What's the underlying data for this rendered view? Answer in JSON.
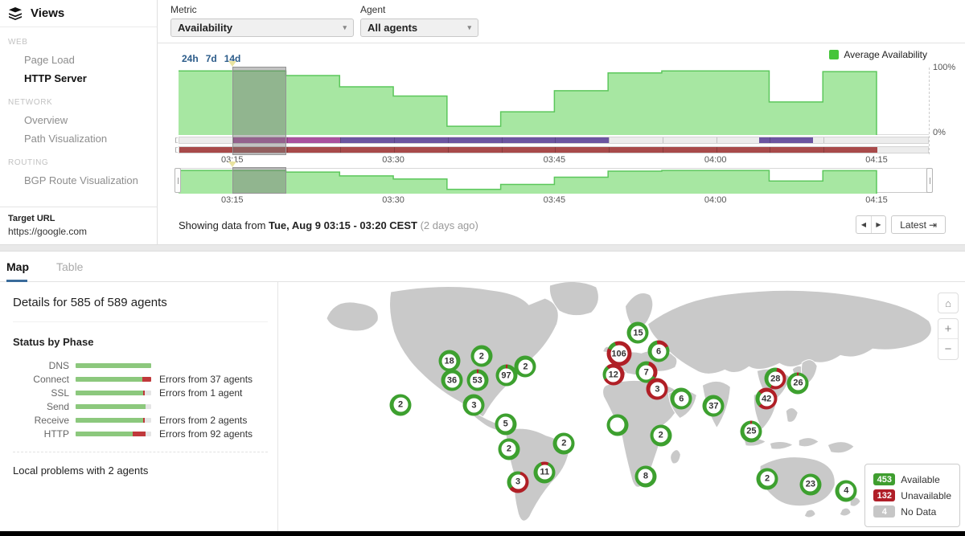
{
  "sidebar": {
    "title": "Views",
    "sections": [
      {
        "label": "WEB",
        "items": [
          {
            "label": "Page Load",
            "active": false
          },
          {
            "label": "HTTP Server",
            "active": true
          }
        ]
      },
      {
        "label": "NETWORK",
        "items": [
          {
            "label": "Overview",
            "active": false
          },
          {
            "label": "Path Visualization",
            "active": false
          }
        ]
      },
      {
        "label": "ROUTING",
        "items": [
          {
            "label": "BGP Route Visualization",
            "active": false
          }
        ]
      }
    ],
    "target_url_label": "Target URL",
    "target_url": "https://google.com"
  },
  "controls": {
    "metric_label": "Metric",
    "metric_value": "Availability",
    "agent_label": "Agent",
    "agent_value": "All agents",
    "caret": "▾"
  },
  "timeline": {
    "range_links": [
      "24h",
      "7d",
      "14d"
    ],
    "legend_label": "Average Availability",
    "y_top": "100%",
    "y_bottom": "0%"
  },
  "chart_data": {
    "type": "area",
    "title": "Average Availability (%)",
    "step_minutes": 5,
    "x": [
      "03:10",
      "03:15",
      "03:20",
      "03:25",
      "03:30",
      "03:35",
      "03:40",
      "03:45",
      "03:50",
      "03:55",
      "04:00",
      "04:05",
      "04:10"
    ],
    "values": [
      96,
      96,
      89,
      72,
      58,
      12,
      34,
      66,
      93,
      96,
      96,
      49,
      95
    ],
    "ylim": [
      0,
      100
    ],
    "x_ticks": [
      "03:15",
      "03:30",
      "03:45",
      "04:00",
      "04:15"
    ],
    "x_tick_minutes": [
      5,
      20,
      35,
      50,
      65
    ],
    "total_minutes": 65,
    "selection": {
      "from": "03:15",
      "to": "03:20",
      "from_min": 5,
      "to_min": 10
    },
    "route_bar_segments": [
      {
        "start_min": 5,
        "end_min": 15,
        "color": "magenta"
      },
      {
        "start_min": 15,
        "end_min": 40,
        "color": "purple"
      },
      {
        "start_min": 54,
        "end_min": 59,
        "color": "purple"
      }
    ],
    "error_bar_segments": [
      {
        "start_min": 0,
        "end_min": 65,
        "color": "red"
      }
    ]
  },
  "status_bar": {
    "prefix": "Showing data from ",
    "bold": "Tue, Aug 9 03:15 - 03:20 CEST",
    "suffix": " (2 days ago)",
    "prev_icon": "◀",
    "next_icon": "▶",
    "latest_label": "Latest",
    "latest_icon": "⇥"
  },
  "tabs": [
    {
      "label": "Map",
      "active": true
    },
    {
      "label": "Table",
      "active": false
    }
  ],
  "details": {
    "title": "Details for 585 of 589 agents",
    "status_by_phase_title": "Status by Phase",
    "phases": [
      {
        "label": "DNS",
        "green": 100,
        "red": 0,
        "note": ""
      },
      {
        "label": "Connect",
        "green": 88,
        "red": 12,
        "note": "Errors from 37 agents"
      },
      {
        "label": "SSL",
        "green": 89,
        "red": 2,
        "note": "Errors from 1 agent"
      },
      {
        "label": "Send",
        "green": 93,
        "red": 0,
        "note": ""
      },
      {
        "label": "Receive",
        "green": 89,
        "red": 2,
        "note": "Errors from 2 agents"
      },
      {
        "label": "HTTP",
        "green": 76,
        "red": 17,
        "note": "Errors from 92 agents"
      }
    ],
    "local_problems": "Local problems with 2 agents"
  },
  "map": {
    "markers": [
      {
        "v": "18",
        "x": 24.9,
        "y": 31.7,
        "red": 0,
        "rot": 0
      },
      {
        "v": "2",
        "x": 29.6,
        "y": 29.8,
        "red": 0,
        "rot": 0
      },
      {
        "v": "97",
        "x": 33.2,
        "y": 37.5,
        "red": 3,
        "rot": -5
      },
      {
        "v": "2",
        "x": 36.0,
        "y": 34.0,
        "red": 0,
        "rot": 0
      },
      {
        "v": "36",
        "x": 25.3,
        "y": 39.5,
        "red": 0,
        "rot": 0
      },
      {
        "v": "53",
        "x": 29.0,
        "y": 39.5,
        "red": 3,
        "rot": -5
      },
      {
        "v": "3",
        "x": 28.5,
        "y": 49.5,
        "red": 0,
        "rot": 0
      },
      {
        "v": "2",
        "x": 17.8,
        "y": 49.2,
        "red": 0,
        "rot": 0
      },
      {
        "v": "5",
        "x": 33.1,
        "y": 57.0,
        "red": 0,
        "rot": 0
      },
      {
        "v": "2",
        "x": 33.6,
        "y": 67.0,
        "red": 0,
        "rot": 0
      },
      {
        "v": "2",
        "x": 41.6,
        "y": 64.7,
        "red": 0,
        "rot": 0
      },
      {
        "v": "11",
        "x": 38.8,
        "y": 76.4,
        "red": 12,
        "rot": -20
      },
      {
        "v": "3",
        "x": 34.9,
        "y": 80.3,
        "red": 60,
        "rot": 15
      },
      {
        "v": "15",
        "x": 52.4,
        "y": 20.4,
        "red": 0,
        "rot": 0
      },
      {
        "v": "106",
        "x": 49.6,
        "y": 28.8,
        "red": 88,
        "rot": -22
      },
      {
        "v": "6",
        "x": 55.4,
        "y": 27.8,
        "red": 20,
        "rot": -10
      },
      {
        "v": "12",
        "x": 48.8,
        "y": 37.2,
        "red": 78,
        "rot": -40
      },
      {
        "v": "7",
        "x": 53.6,
        "y": 36.2,
        "red": 30,
        "rot": 15
      },
      {
        "v": "3",
        "x": 55.2,
        "y": 43.0,
        "red": 100,
        "rot": 0
      },
      {
        "v": "6",
        "x": 58.7,
        "y": 46.9,
        "red": 0,
        "rot": 0
      },
      {
        "v": "37",
        "x": 63.4,
        "y": 49.8,
        "red": 0,
        "rot": 0
      },
      {
        "v": "",
        "x": 49.4,
        "y": 57.3,
        "red": 0,
        "rot": 0
      },
      {
        "v": "2",
        "x": 55.7,
        "y": 61.5,
        "red": 0,
        "rot": 0
      },
      {
        "v": "8",
        "x": 53.5,
        "y": 78.0,
        "red": 0,
        "rot": 0
      },
      {
        "v": "28",
        "x": 72.4,
        "y": 38.8,
        "red": 55,
        "rot": 10
      },
      {
        "v": "26",
        "x": 75.7,
        "y": 40.5,
        "red": 3,
        "rot": -5
      },
      {
        "v": "42",
        "x": 71.1,
        "y": 46.9,
        "red": 75,
        "rot": -45
      },
      {
        "v": "25",
        "x": 68.9,
        "y": 59.9,
        "red": 3,
        "rot": -5
      },
      {
        "v": "2",
        "x": 71.2,
        "y": 79.0,
        "red": 0,
        "rot": 0
      },
      {
        "v": "23",
        "x": 77.5,
        "y": 81.2,
        "red": 0,
        "rot": 0
      },
      {
        "v": "4",
        "x": 82.7,
        "y": 83.8,
        "red": 0,
        "rot": 0
      }
    ],
    "legend": [
      {
        "value": "453",
        "label": "Available",
        "color_key": "badge_green"
      },
      {
        "value": "132",
        "label": "Unavailable",
        "color_key": "badge_red"
      },
      {
        "value": "4",
        "label": "No Data",
        "color_key": "badge_gray"
      }
    ],
    "controls": {
      "home": "⌂",
      "zoom_in": "+",
      "zoom_out": "−"
    }
  },
  "colors": {
    "accent_blue": "#2c5c8a",
    "tab_underline": "#3a6b9b",
    "area_fill": "#a7e7a2",
    "area_stroke": "#5cc75c",
    "legend_green": "#46c53a",
    "ring_green": "#3da02f",
    "ring_red": "#b01f26",
    "bar_magenta": "#a9519e",
    "bar_purple": "#6b55a0",
    "bar_red": "#a84a4a",
    "phase_green": "#8cc87d",
    "phase_red": "#c0393b",
    "badge_green": "#3f9e2f",
    "badge_red": "#b01e28",
    "badge_gray": "#c6c6c6",
    "map_land": "#c9c9c9"
  }
}
